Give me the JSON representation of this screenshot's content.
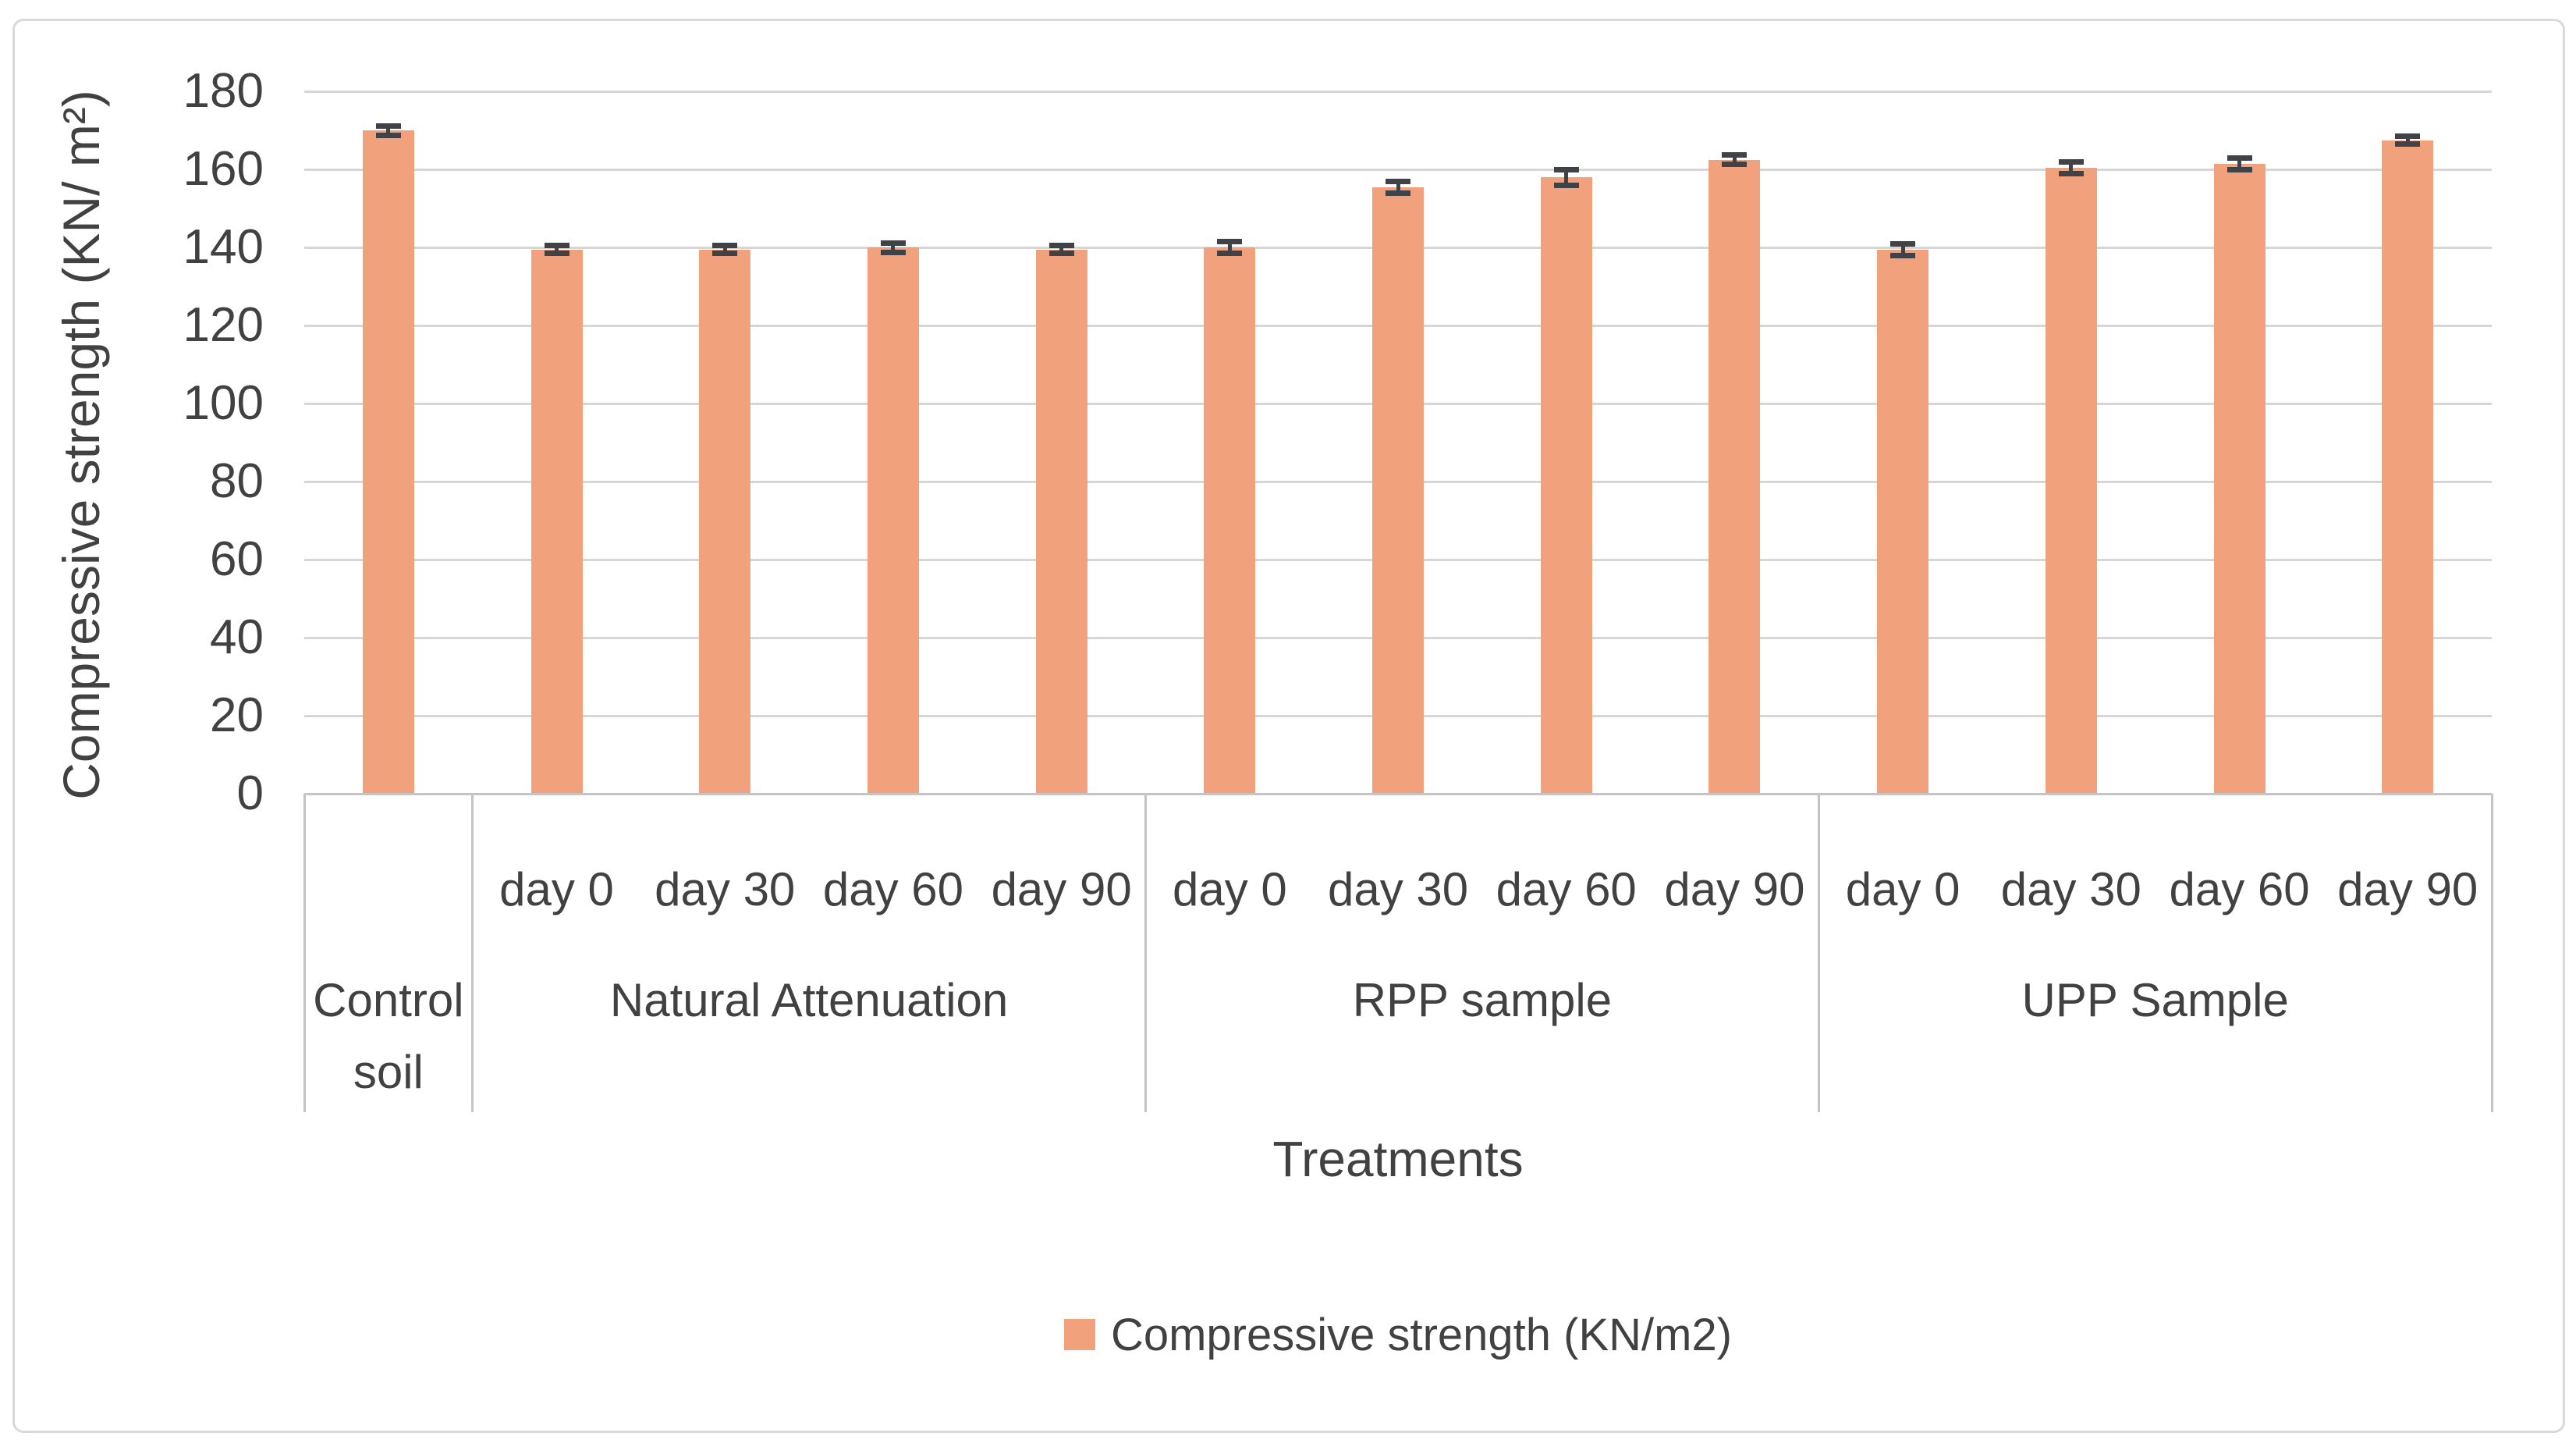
{
  "chart_data": {
    "type": "bar",
    "title": "",
    "xlabel": "Treatments",
    "ylabel": "Compressive strength (KN/ m²)",
    "legend_label": "Compressive strength (KN/m2)",
    "legend_position": "bottom-center",
    "grid": true,
    "ylim": [
      0,
      180
    ],
    "ytick_interval": 20,
    "yticks": [
      0,
      20,
      40,
      60,
      80,
      100,
      120,
      140,
      160,
      180
    ],
    "series_name": "Compressive strength (KN/m2)",
    "groups": [
      {
        "label": "Control soil",
        "bars": [
          {
            "day": "",
            "value": 170,
            "error": 1.2
          }
        ]
      },
      {
        "label": "Natural Attenuation",
        "bars": [
          {
            "day": "day 0",
            "value": 139.5,
            "error": 1.0
          },
          {
            "day": "day 30",
            "value": 139.5,
            "error": 1.0
          },
          {
            "day": "day 60",
            "value": 140,
            "error": 1.2
          },
          {
            "day": "day 90",
            "value": 139.5,
            "error": 1.0
          }
        ]
      },
      {
        "label": "RPP sample",
        "bars": [
          {
            "day": "day 0",
            "value": 140,
            "error": 1.5
          },
          {
            "day": "day 30",
            "value": 155.5,
            "error": 1.5
          },
          {
            "day": "day 60",
            "value": 158,
            "error": 2.0
          },
          {
            "day": "day 90",
            "value": 162.5,
            "error": 1.2
          }
        ]
      },
      {
        "label": "UPP Sample",
        "bars": [
          {
            "day": "day 0",
            "value": 139.5,
            "error": 1.5
          },
          {
            "day": "day 30",
            "value": 160.5,
            "error": 1.5
          },
          {
            "day": "day 60",
            "value": 161.5,
            "error": 1.5
          },
          {
            "day": "day 90",
            "value": 167.5,
            "error": 1.0
          }
        ]
      }
    ],
    "colors": {
      "bar": "#F1A27C",
      "error_bar": "#3F4347",
      "gridline": "#D6D6D6",
      "axis_line": "#C4C4C4",
      "text": "#414141",
      "figure_border": "#D9D9D9",
      "background": "#FFFFFF"
    }
  }
}
